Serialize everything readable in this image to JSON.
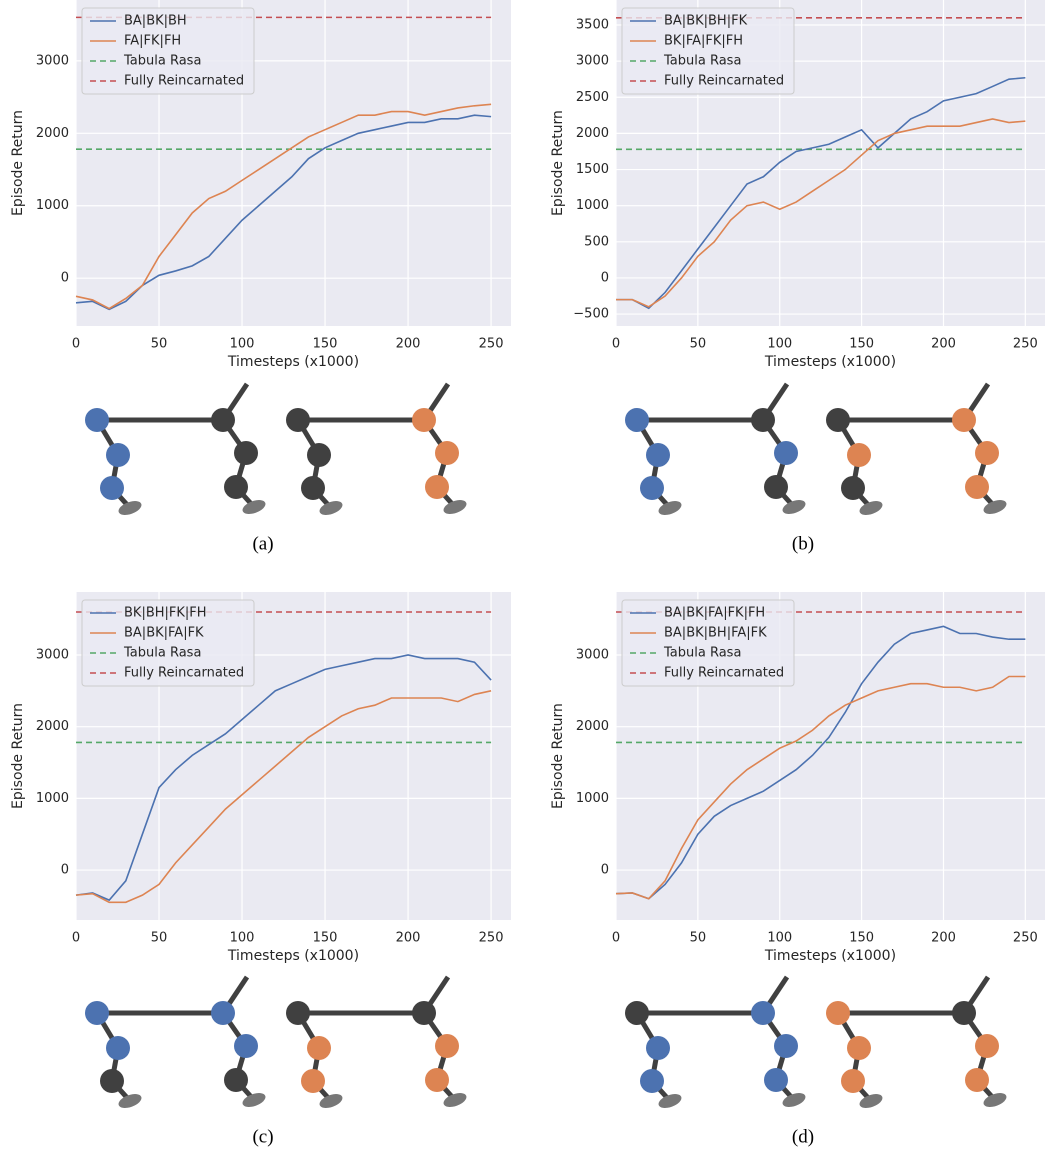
{
  "chart_data": [
    {
      "type": "line",
      "caption": "(a)",
      "xlabel": "Timesteps (x1000)",
      "ylabel": "Episode Return",
      "x": [
        0,
        10,
        20,
        30,
        40,
        50,
        60,
        70,
        80,
        90,
        100,
        110,
        120,
        130,
        140,
        150,
        160,
        170,
        180,
        190,
        200,
        210,
        220,
        230,
        240,
        250
      ],
      "xlim": [
        0,
        262
      ],
      "xticks": [
        0,
        50,
        100,
        150,
        200,
        250
      ],
      "ylim": [
        -660,
        3840
      ],
      "yticks": [
        0,
        1000,
        2000,
        3000
      ],
      "grid": true,
      "legend": "upper left",
      "series": [
        {
          "name": "BA|BK|BH",
          "color": "#4c72b0",
          "values": [
            -340,
            -320,
            -430,
            -320,
            -100,
            40,
            100,
            170,
            300,
            550,
            800,
            1000,
            1200,
            1400,
            1650,
            1800,
            1900,
            2000,
            2050,
            2100,
            2150,
            2150,
            2200,
            2200,
            2250,
            2230
          ]
        },
        {
          "name": "FA|FK|FH",
          "color": "#dd8452",
          "values": [
            -250,
            -300,
            -420,
            -280,
            -100,
            300,
            600,
            900,
            1100,
            1200,
            1350,
            1500,
            1650,
            1800,
            1950,
            2050,
            2150,
            2250,
            2250,
            2300,
            2300,
            2250,
            2300,
            2350,
            2380,
            2400
          ]
        }
      ],
      "hlines": [
        {
          "name": "Tabula Rasa",
          "color": "#55a868",
          "value": 1780
        },
        {
          "name": "Fully Reincarnated",
          "color": "#c44e52",
          "value": 3600
        }
      ]
    },
    {
      "type": "line",
      "caption": "(b)",
      "xlabel": "Timesteps (x1000)",
      "ylabel": "Episode Return",
      "x": [
        0,
        10,
        20,
        30,
        40,
        50,
        60,
        70,
        80,
        90,
        100,
        110,
        120,
        130,
        140,
        150,
        160,
        170,
        180,
        190,
        200,
        210,
        220,
        230,
        240,
        250
      ],
      "xlim": [
        0,
        262
      ],
      "xticks": [
        0,
        50,
        100,
        150,
        200,
        250
      ],
      "ylim": [
        -665,
        3846
      ],
      "yticks": [
        {
          "value": -500,
          "label": "−500"
        },
        0,
        500,
        1000,
        1500,
        2000,
        2500,
        3000,
        3500
      ],
      "grid": true,
      "legend": "upper left",
      "series": [
        {
          "name": "BA|BK|BH|FK",
          "color": "#4c72b0",
          "values": [
            -300,
            -300,
            -420,
            -200,
            100,
            400,
            700,
            1000,
            1300,
            1400,
            1600,
            1750,
            1800,
            1850,
            1950,
            2050,
            1800,
            2000,
            2200,
            2300,
            2450,
            2500,
            2550,
            2650,
            2750,
            2770
          ]
        },
        {
          "name": "BK|FA|FK|FH",
          "color": "#dd8452",
          "values": [
            -300,
            -300,
            -400,
            -250,
            0,
            300,
            500,
            800,
            1000,
            1050,
            950,
            1050,
            1200,
            1350,
            1500,
            1700,
            1900,
            2000,
            2050,
            2100,
            2100,
            2100,
            2150,
            2200,
            2150,
            2170
          ]
        }
      ],
      "hlines": [
        {
          "name": "Tabula Rasa",
          "color": "#55a868",
          "value": 1780
        },
        {
          "name": "Fully Reincarnated",
          "color": "#c44e52",
          "value": 3600
        }
      ]
    },
    {
      "type": "line",
      "caption": "(c)",
      "xlabel": "Timesteps (x1000)",
      "ylabel": "Episode Return",
      "x": [
        0,
        10,
        20,
        30,
        40,
        50,
        60,
        70,
        80,
        90,
        100,
        110,
        120,
        130,
        140,
        150,
        160,
        170,
        180,
        190,
        200,
        210,
        220,
        230,
        240,
        250
      ],
      "xlim": [
        0,
        262
      ],
      "xticks": [
        0,
        50,
        100,
        150,
        200,
        250
      ],
      "ylim": [
        -697,
        3879
      ],
      "yticks": [
        0,
        1000,
        2000,
        3000
      ],
      "grid": true,
      "legend": "upper left",
      "series": [
        {
          "name": "BK|BH|FK|FH",
          "color": "#4c72b0",
          "values": [
            -350,
            -320,
            -420,
            -150,
            500,
            1150,
            1400,
            1600,
            1750,
            1900,
            2100,
            2300,
            2500,
            2600,
            2700,
            2800,
            2850,
            2900,
            2950,
            2950,
            3000,
            2950,
            2950,
            2950,
            2900,
            2650
          ]
        },
        {
          "name": "BA|BK|FA|FK",
          "color": "#dd8452",
          "values": [
            -350,
            -330,
            -450,
            -450,
            -350,
            -200,
            100,
            350,
            600,
            850,
            1050,
            1250,
            1450,
            1650,
            1850,
            2000,
            2150,
            2250,
            2300,
            2400,
            2400,
            2400,
            2400,
            2350,
            2450,
            2500
          ]
        }
      ],
      "hlines": [
        {
          "name": "Tabula Rasa",
          "color": "#55a868",
          "value": 1780
        },
        {
          "name": "Fully Reincarnated",
          "color": "#c44e52",
          "value": 3600
        }
      ]
    },
    {
      "type": "line",
      "caption": "(d)",
      "xlabel": "Timesteps (x1000)",
      "ylabel": "Episode Return",
      "x": [
        0,
        10,
        20,
        30,
        40,
        50,
        60,
        70,
        80,
        90,
        100,
        110,
        120,
        130,
        140,
        150,
        160,
        170,
        180,
        190,
        200,
        210,
        220,
        230,
        240,
        250
      ],
      "xlim": [
        0,
        262
      ],
      "xticks": [
        0,
        50,
        100,
        150,
        200,
        250
      ],
      "ylim": [
        -697,
        3879
      ],
      "yticks": [
        0,
        1000,
        2000,
        3000
      ],
      "grid": true,
      "legend": "upper left",
      "series": [
        {
          "name": "BA|BK|FA|FK|FH",
          "color": "#4c72b0",
          "values": [
            -330,
            -320,
            -400,
            -200,
            100,
            500,
            750,
            900,
            1000,
            1100,
            1250,
            1400,
            1600,
            1850,
            2200,
            2600,
            2900,
            3150,
            3300,
            3350,
            3400,
            3300,
            3300,
            3250,
            3220,
            3220
          ]
        },
        {
          "name": "BA|BK|BH|FA|FK",
          "color": "#dd8452",
          "values": [
            -330,
            -320,
            -400,
            -150,
            300,
            700,
            950,
            1200,
            1400,
            1550,
            1700,
            1800,
            1950,
            2150,
            2300,
            2400,
            2500,
            2550,
            2600,
            2600,
            2550,
            2550,
            2500,
            2550,
            2700,
            2700
          ]
        }
      ],
      "hlines": [
        {
          "name": "Tabula Rasa",
          "color": "#55a868",
          "value": 1780
        },
        {
          "name": "Fully Reincarnated",
          "color": "#c44e52",
          "value": 3600
        }
      ]
    }
  ]
}
